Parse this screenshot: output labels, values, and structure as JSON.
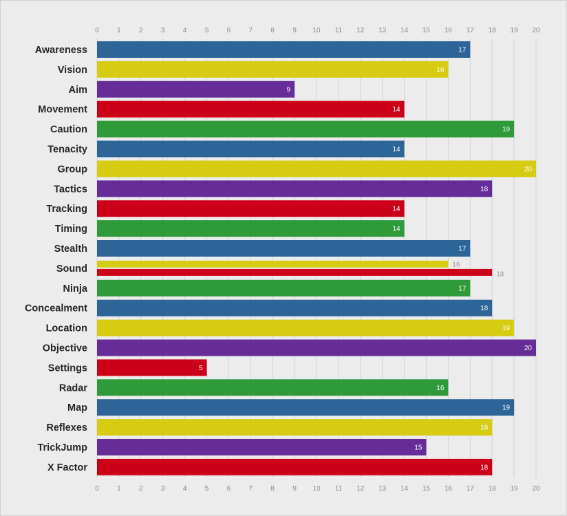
{
  "chart_data": {
    "type": "bar",
    "orientation": "horizontal",
    "title": "",
    "xlabel": "",
    "ylabel": "",
    "xlim": [
      0,
      20
    ],
    "xticks": [
      0,
      1,
      2,
      3,
      4,
      5,
      6,
      7,
      8,
      9,
      10,
      11,
      12,
      13,
      14,
      15,
      16,
      17,
      18,
      19,
      20
    ],
    "grid": true,
    "legend": "none",
    "colors": {
      "blue": "#2e6599",
      "yellow": "#d6cc14",
      "purple": "#662c98",
      "red": "#cc0018",
      "green": "#2e9a3a"
    },
    "categories": [
      "Awareness",
      "Vision",
      "Aim",
      "Movement",
      "Caution",
      "Tenacity",
      "Group",
      "Tactics",
      "Tracking",
      "Timing",
      "Stealth",
      "Sound",
      "Ninja",
      "Concealment",
      "Location",
      "Objective",
      "Settings",
      "Radar",
      "Map",
      "Reflexes",
      "TrickJump",
      "X Factor"
    ],
    "bars": [
      {
        "category": "Awareness",
        "values": [
          17
        ],
        "colors": [
          "blue"
        ]
      },
      {
        "category": "Vision",
        "values": [
          16
        ],
        "colors": [
          "yellow"
        ]
      },
      {
        "category": "Aim",
        "values": [
          9
        ],
        "colors": [
          "purple"
        ]
      },
      {
        "category": "Movement",
        "values": [
          14
        ],
        "colors": [
          "red"
        ]
      },
      {
        "category": "Caution",
        "values": [
          19
        ],
        "colors": [
          "green"
        ]
      },
      {
        "category": "Tenacity",
        "values": [
          14
        ],
        "colors": [
          "blue"
        ]
      },
      {
        "category": "Group",
        "values": [
          20
        ],
        "colors": [
          "yellow"
        ]
      },
      {
        "category": "Tactics",
        "values": [
          18
        ],
        "colors": [
          "purple"
        ]
      },
      {
        "category": "Tracking",
        "values": [
          14
        ],
        "colors": [
          "red"
        ]
      },
      {
        "category": "Timing",
        "values": [
          14
        ],
        "colors": [
          "green"
        ]
      },
      {
        "category": "Stealth",
        "values": [
          17
        ],
        "colors": [
          "blue"
        ]
      },
      {
        "category": "Sound",
        "values": [
          16,
          18
        ],
        "colors": [
          "yellow",
          "red"
        ]
      },
      {
        "category": "Ninja",
        "values": [
          17
        ],
        "colors": [
          "green"
        ]
      },
      {
        "category": "Concealment",
        "values": [
          18
        ],
        "colors": [
          "blue"
        ]
      },
      {
        "category": "Location",
        "values": [
          19
        ],
        "colors": [
          "yellow"
        ]
      },
      {
        "category": "Objective",
        "values": [
          20
        ],
        "colors": [
          "purple"
        ]
      },
      {
        "category": "Settings",
        "values": [
          5
        ],
        "colors": [
          "red"
        ]
      },
      {
        "category": "Radar",
        "values": [
          16
        ],
        "colors": [
          "green"
        ]
      },
      {
        "category": "Map",
        "values": [
          19
        ],
        "colors": [
          "blue"
        ]
      },
      {
        "category": "Reflexes",
        "values": [
          18
        ],
        "colors": [
          "yellow"
        ]
      },
      {
        "category": "TrickJump",
        "values": [
          15
        ],
        "colors": [
          "purple"
        ]
      },
      {
        "category": "X Factor",
        "values": [
          18
        ],
        "colors": [
          "red"
        ]
      }
    ]
  }
}
